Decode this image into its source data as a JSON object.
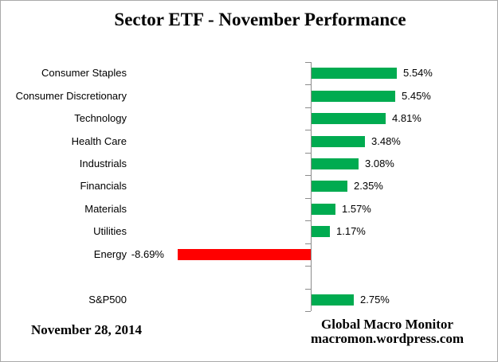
{
  "chart_data": {
    "type": "bar",
    "orientation": "horizontal",
    "title": "Sector ETF - November Performance",
    "categories": [
      "Consumer Staples",
      "Consumer Discretionary",
      "Technology",
      "Health Care",
      "Industrials",
      "Financials",
      "Materials",
      "Utilities",
      "Energy",
      "",
      "S&P500"
    ],
    "values": [
      5.54,
      5.45,
      4.81,
      3.48,
      3.08,
      2.35,
      1.57,
      1.17,
      -8.69,
      null,
      2.75
    ],
    "value_labels": [
      "5.54%",
      "5.45%",
      "4.81%",
      "3.48%",
      "3.08%",
      "2.35%",
      "1.57%",
      "1.17%",
      "-8.69%",
      "",
      "2.75%"
    ],
    "positive_color": "#00ab50",
    "negative_color": "#ff0000",
    "axis_color": "#8c8c8c",
    "grid": "off",
    "legend": "none",
    "value_format": "percent"
  },
  "footer": {
    "date": "November 28, 2014",
    "source_line1": "Global Macro Monitor",
    "source_line2": "macromon.wordpress.com"
  },
  "colors": {
    "background": "#ffffff",
    "border": "#a9a9a9",
    "text": "#000000"
  }
}
